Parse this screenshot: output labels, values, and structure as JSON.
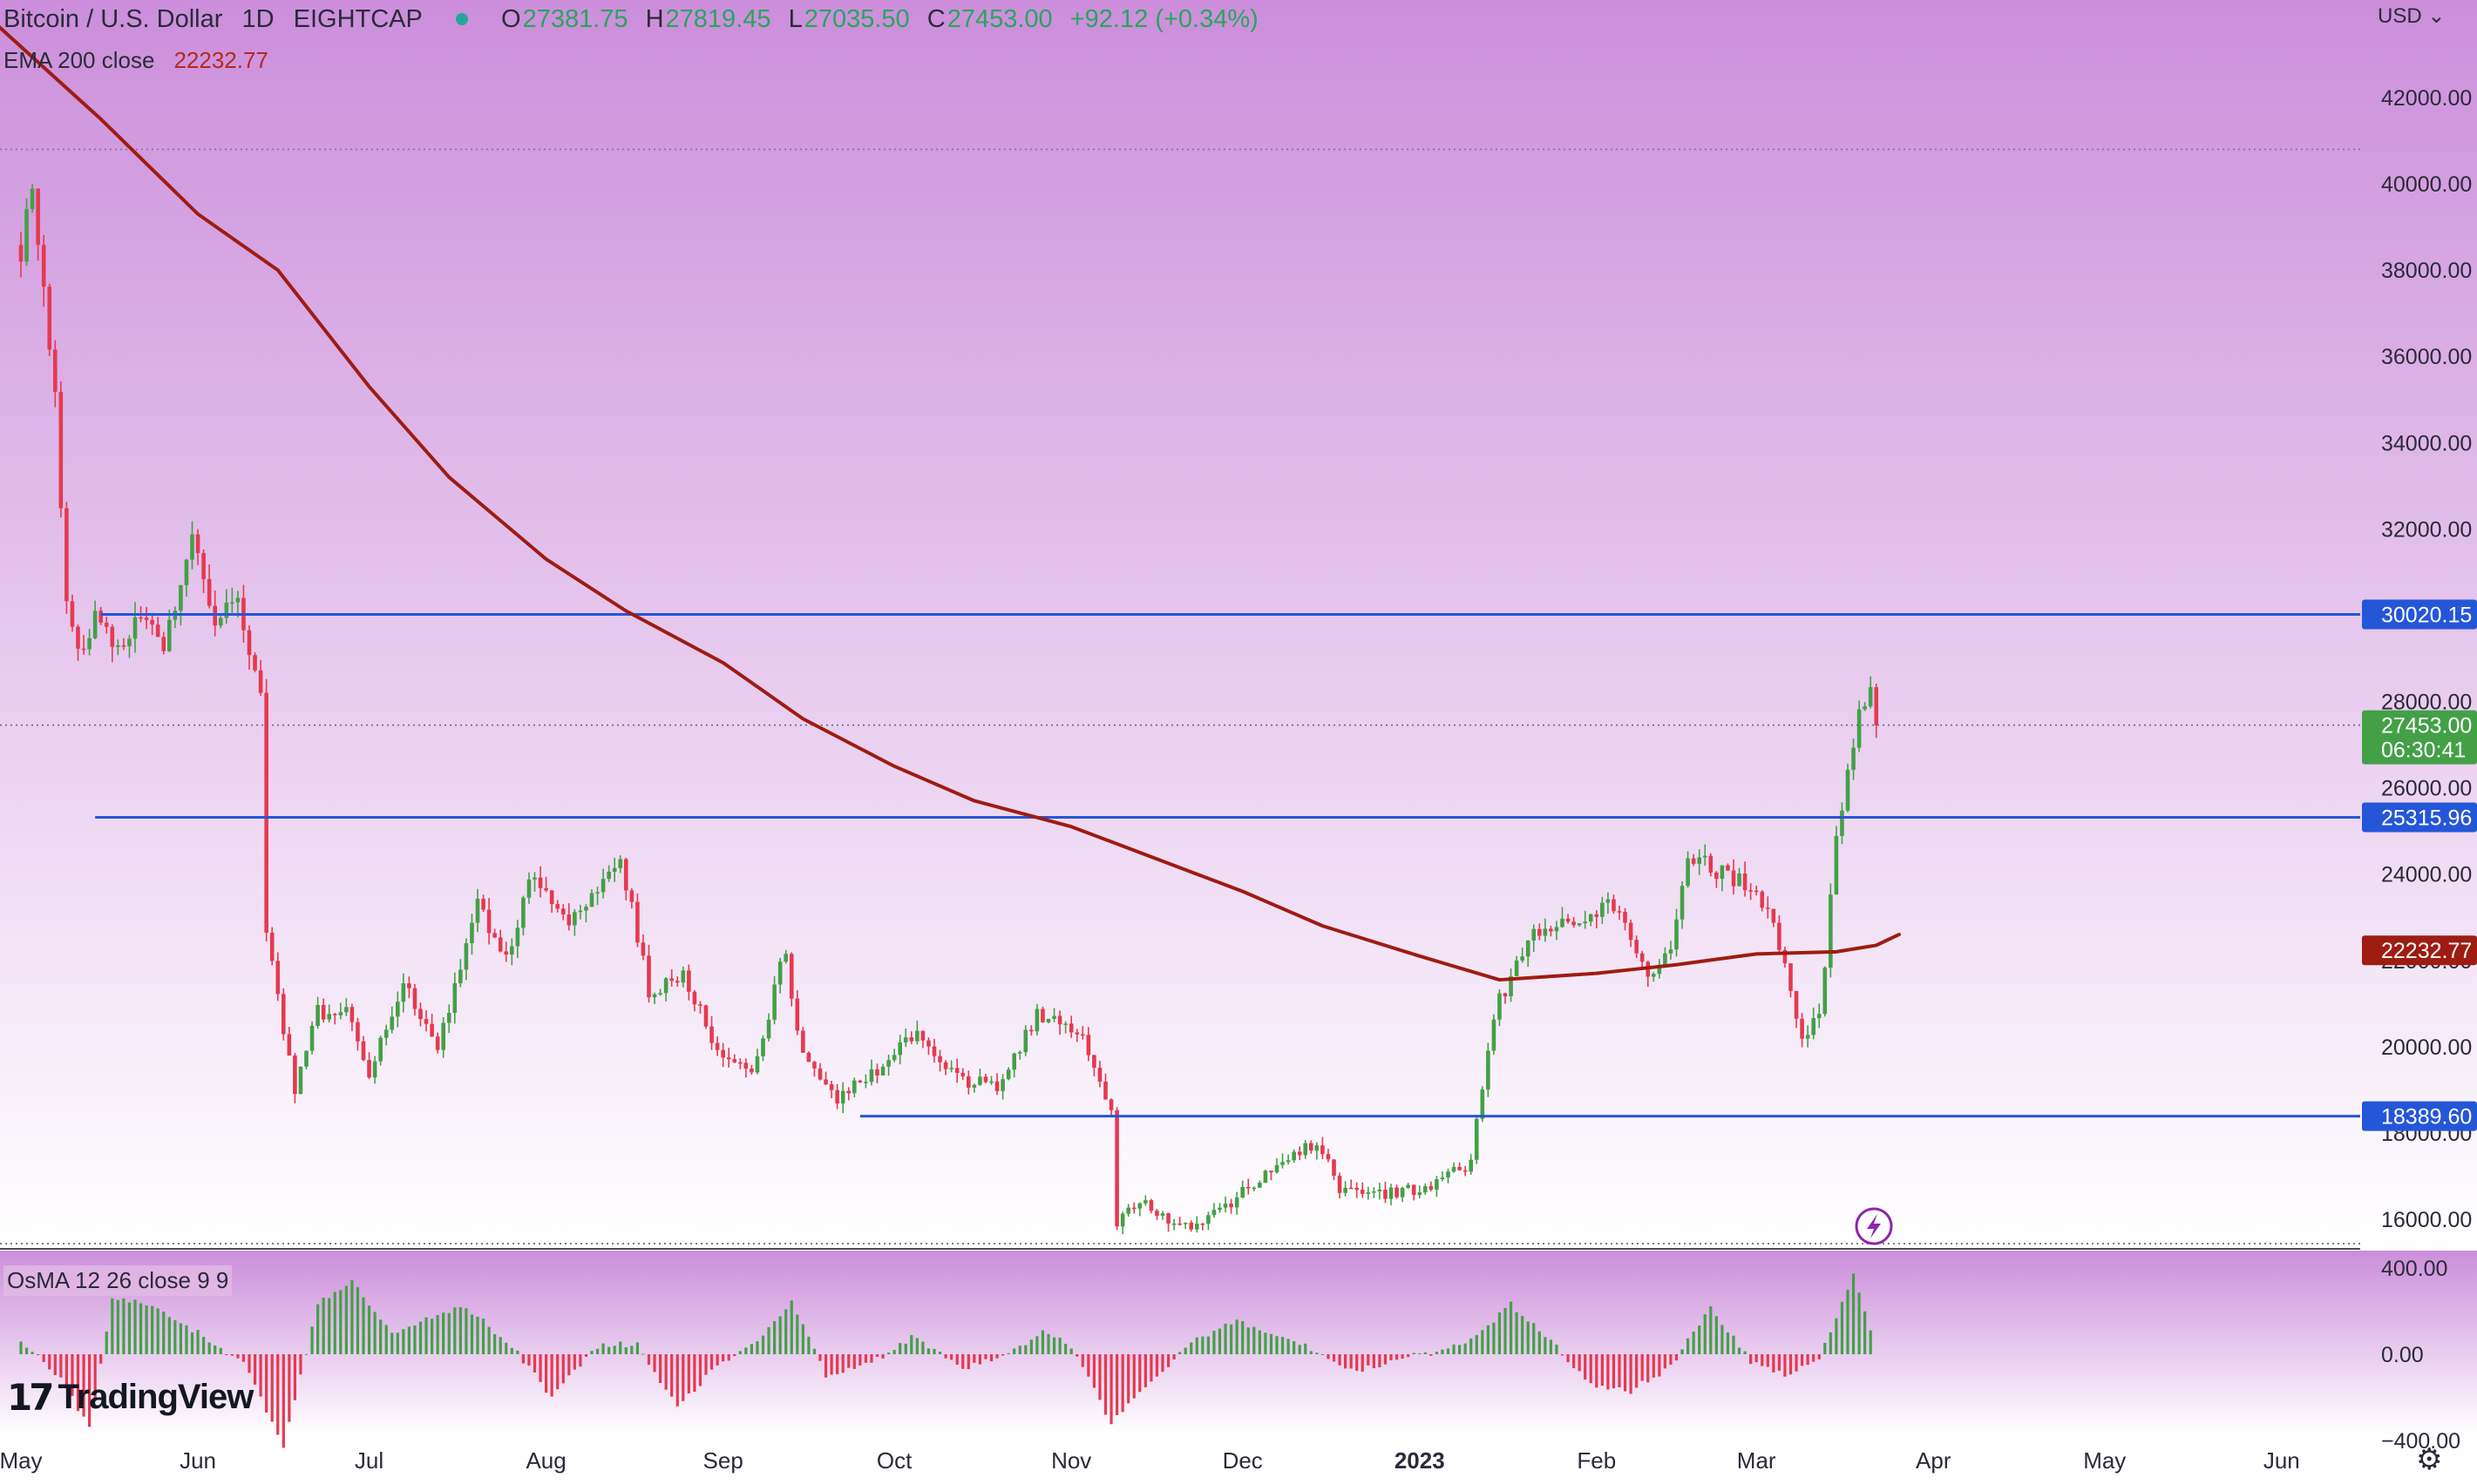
{
  "header": {
    "symbol": "Bitcoin / U.S. Dollar",
    "interval": "1D",
    "exchange": "EIGHTCAP",
    "open_key": "O",
    "open": "27381.75",
    "high_key": "H",
    "high": "27819.45",
    "low_key": "L",
    "low": "27035.50",
    "close_key": "C",
    "close": "27453.00",
    "change": "+92.12 (+0.34%)"
  },
  "ema_legend": {
    "label": "EMA 200 close",
    "value": "22232.77"
  },
  "osma_legend": {
    "label": "OsMA 12 26 close 9 9"
  },
  "currency": "USD",
  "brand": {
    "mark": "17",
    "name": "TradingView"
  },
  "colors": {
    "up": "#43a047",
    "down": "#e53950",
    "ema": "#9e1c12",
    "hline": "#2456d8",
    "current_price": "#43a047",
    "ema_label": "#9e1c12",
    "bg_top": "#cc8edb",
    "bg_bottom": "#ffffff"
  },
  "chart_data": [
    {
      "type": "candlestick",
      "title": "Bitcoin / U.S. Dollar",
      "interval": "1D",
      "ylim": [
        15000,
        43500
      ],
      "y_ticks": [
        "16000.00",
        "18000.00",
        "20000.00",
        "22000.00",
        "24000.00",
        "26000.00",
        "28000.00",
        "30000.00",
        "32000.00",
        "34000.00",
        "36000.00",
        "38000.00",
        "40000.00",
        "42000.00"
      ],
      "x_ticks": [
        "May",
        "Jun",
        "Jul",
        "Aug",
        "Sep",
        "Oct",
        "Nov",
        "Dec",
        "2023",
        "Feb",
        "Mar",
        "Apr",
        "May",
        "Jun"
      ],
      "price_path": [
        [
          "2022-05-01",
          38500
        ],
        [
          "2022-05-03",
          39800
        ],
        [
          "2022-05-05",
          37500
        ],
        [
          "2022-05-07",
          35000
        ],
        [
          "2022-05-09",
          30500
        ],
        [
          "2022-05-11",
          29000
        ],
        [
          "2022-05-14",
          30000
        ],
        [
          "2022-05-18",
          29200
        ],
        [
          "2022-05-22",
          29900
        ],
        [
          "2022-05-26",
          29300
        ],
        [
          "2022-05-31",
          31700
        ],
        [
          "2022-06-04",
          29700
        ],
        [
          "2022-06-08",
          30500
        ],
        [
          "2022-06-12",
          28000
        ],
        [
          "2022-06-13",
          22500
        ],
        [
          "2022-06-18",
          19000
        ],
        [
          "2022-06-22",
          20800
        ],
        [
          "2022-06-27",
          20800
        ],
        [
          "2022-07-01",
          19300
        ],
        [
          "2022-07-07",
          21500
        ],
        [
          "2022-07-13",
          20000
        ],
        [
          "2022-07-20",
          23300
        ],
        [
          "2022-07-25",
          22000
        ],
        [
          "2022-07-29",
          23900
        ],
        [
          "2022-08-05",
          22900
        ],
        [
          "2022-08-14",
          24400
        ],
        [
          "2022-08-19",
          21300
        ],
        [
          "2022-08-25",
          21600
        ],
        [
          "2022-08-31",
          20000
        ],
        [
          "2022-09-06",
          19300
        ],
        [
          "2022-09-12",
          22300
        ],
        [
          "2022-09-14",
          20200
        ],
        [
          "2022-09-21",
          18800
        ],
        [
          "2022-09-28",
          19500
        ],
        [
          "2022-10-05",
          20300
        ],
        [
          "2022-10-13",
          19200
        ],
        [
          "2022-10-20",
          19100
        ],
        [
          "2022-10-26",
          20800
        ],
        [
          "2022-11-03",
          20200
        ],
        [
          "2022-11-08",
          18500
        ],
        [
          "2022-11-09",
          15900
        ],
        [
          "2022-11-13",
          16400
        ],
        [
          "2022-11-21",
          15800
        ],
        [
          "2022-11-28",
          16300
        ],
        [
          "2022-12-05",
          17000
        ],
        [
          "2022-12-14",
          17800
        ],
        [
          "2022-12-18",
          16700
        ],
        [
          "2022-12-28",
          16600
        ],
        [
          "2023-01-05",
          16900
        ],
        [
          "2023-01-10",
          17300
        ],
        [
          "2023-01-14",
          20800
        ],
        [
          "2023-01-21",
          22700
        ],
        [
          "2023-01-28",
          23000
        ],
        [
          "2023-02-04",
          23300
        ],
        [
          "2023-02-10",
          21800
        ],
        [
          "2023-02-14",
          22100
        ],
        [
          "2023-02-17",
          24500
        ],
        [
          "2023-02-22",
          24100
        ],
        [
          "2023-03-01",
          23600
        ],
        [
          "2023-03-05",
          22400
        ],
        [
          "2023-03-09",
          20300
        ],
        [
          "2023-03-12",
          20600
        ],
        [
          "2023-03-15",
          24700
        ],
        [
          "2023-03-19",
          27800
        ],
        [
          "2023-03-21",
          28200
        ],
        [
          "2023-03-22",
          27453
        ]
      ],
      "ema200": {
        "name": "EMA 200 close",
        "value": "22232.77",
        "points": [
          [
            "2022-04-20",
            44500
          ],
          [
            "2022-05-15",
            41500
          ],
          [
            "2022-06-01",
            39300
          ],
          [
            "2022-06-15",
            38000
          ],
          [
            "2022-07-01",
            35300
          ],
          [
            "2022-07-15",
            33200
          ],
          [
            "2022-08-01",
            31300
          ],
          [
            "2022-08-15",
            30100
          ],
          [
            "2022-09-01",
            28900
          ],
          [
            "2022-09-15",
            27600
          ],
          [
            "2022-10-01",
            26500
          ],
          [
            "2022-10-15",
            25700
          ],
          [
            "2022-11-01",
            25100
          ],
          [
            "2022-11-15",
            24400
          ],
          [
            "2022-12-01",
            23600
          ],
          [
            "2022-12-15",
            22800
          ],
          [
            "2023-01-01",
            22100
          ],
          [
            "2023-01-15",
            21550
          ],
          [
            "2023-02-01",
            21700
          ],
          [
            "2023-02-15",
            21900
          ],
          [
            "2023-03-01",
            22150
          ],
          [
            "2023-03-15",
            22200
          ],
          [
            "2023-03-22",
            22350
          ],
          [
            "2023-03-26",
            22600
          ]
        ]
      },
      "horizontal_lines": [
        {
          "price": 30020.15,
          "label": "30020.15",
          "from": "2022-05-15"
        },
        {
          "price": 25315.96,
          "label": "25315.96",
          "from": "2022-05-14"
        },
        {
          "price": 18389.6,
          "label": "18389.60",
          "from": "2022-09-25"
        }
      ],
      "current_price": {
        "price": 27453,
        "label": "27453.00",
        "countdown": "06:30:41"
      },
      "ema_label": {
        "price": 22232.77,
        "label": "22232.77"
      },
      "dotted_level": 40800
    },
    {
      "type": "bar",
      "title": "OsMA 12 26 close 9 9",
      "ylim": [
        -400,
        400
      ],
      "y_ticks": [
        "400.00",
        "0.00",
        "−400.00"
      ],
      "series": [
        {
          "name": "OsMA",
          "values": [
            [
              "2022-05-01",
              60
            ],
            [
              "2022-05-08",
              -110
            ],
            [
              "2022-05-13",
              -350
            ],
            [
              "2022-05-17",
              260
            ],
            [
              "2022-05-24",
              230
            ],
            [
              "2022-06-01",
              100
            ],
            [
              "2022-06-09",
              -40
            ],
            [
              "2022-06-16",
              -430
            ],
            [
              "2022-06-22",
              230
            ],
            [
              "2022-06-28",
              350
            ],
            [
              "2022-07-05",
              90
            ],
            [
              "2022-07-12",
              170
            ],
            [
              "2022-07-18",
              220
            ],
            [
              "2022-07-26",
              40
            ],
            [
              "2022-08-02",
              -200
            ],
            [
              "2022-08-10",
              40
            ],
            [
              "2022-08-17",
              50
            ],
            [
              "2022-08-24",
              -250
            ],
            [
              "2022-08-30",
              -80
            ],
            [
              "2022-09-06",
              40
            ],
            [
              "2022-09-13",
              250
            ],
            [
              "2022-09-19",
              -100
            ],
            [
              "2022-09-27",
              -40
            ],
            [
              "2022-10-04",
              80
            ],
            [
              "2022-10-13",
              -60
            ],
            [
              "2022-10-20",
              -20
            ],
            [
              "2022-10-27",
              100
            ],
            [
              "2022-11-01",
              40
            ],
            [
              "2022-11-08",
              -320
            ],
            [
              "2022-11-15",
              -120
            ],
            [
              "2022-11-22",
              50
            ],
            [
              "2022-11-30",
              160
            ],
            [
              "2022-12-07",
              80
            ],
            [
              "2022-12-14",
              20
            ],
            [
              "2022-12-21",
              -80
            ],
            [
              "2022-12-28",
              -20
            ],
            [
              "2023-01-04",
              10
            ],
            [
              "2023-01-10",
              60
            ],
            [
              "2023-01-17",
              230
            ],
            [
              "2023-01-24",
              60
            ],
            [
              "2023-01-31",
              -140
            ],
            [
              "2023-02-07",
              -170
            ],
            [
              "2023-02-14",
              -60
            ],
            [
              "2023-02-21",
              220
            ],
            [
              "2023-02-28",
              -30
            ],
            [
              "2023-03-06",
              -100
            ],
            [
              "2023-03-12",
              -30
            ],
            [
              "2023-03-18",
              380
            ],
            [
              "2023-03-22",
              20
            ]
          ]
        }
      ]
    }
  ]
}
